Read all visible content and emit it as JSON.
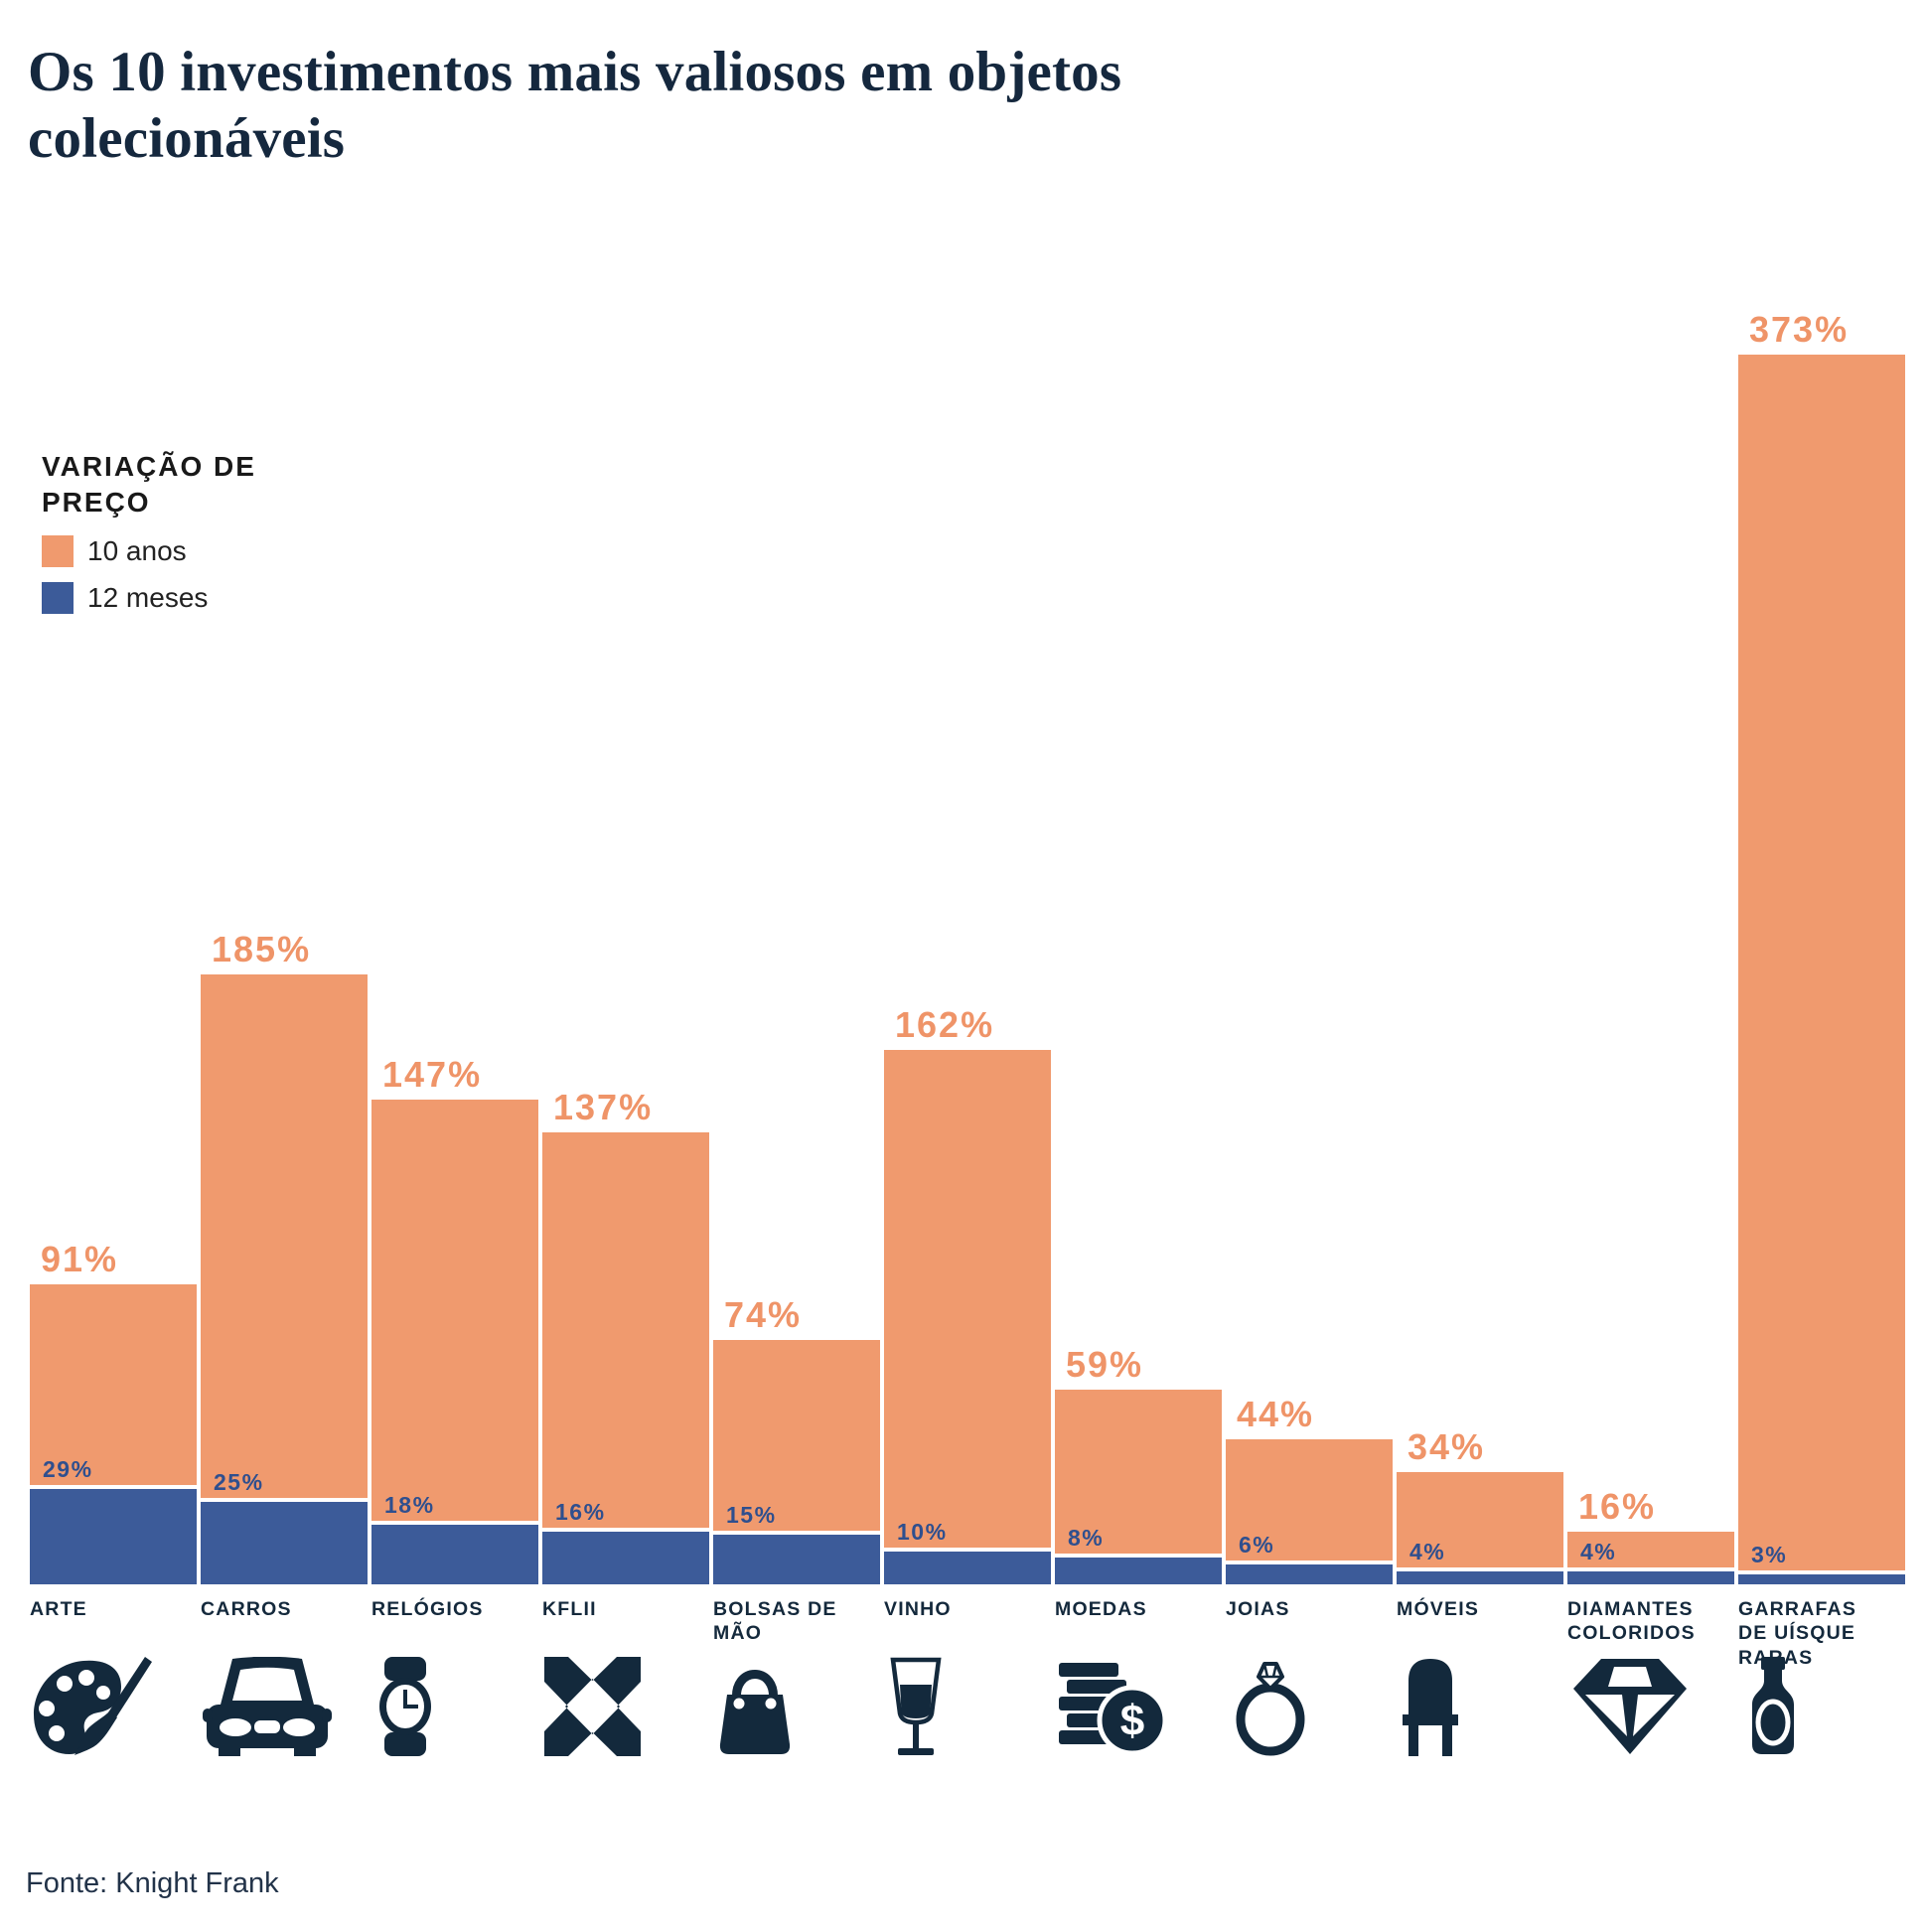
{
  "title": "Os 10 investimentos mais valiosos em objetos colecionáveis",
  "legend": {
    "title": "VARIAÇÃO DE PREÇO",
    "items": [
      {
        "label": "10 anos",
        "color": "#F09A6E"
      },
      {
        "label": "12 meses",
        "color": "#3C5B99"
      }
    ]
  },
  "source": "Fonte: Knight Frank",
  "colors": {
    "bar_10_anos": "#F09A6E",
    "bar_12_meses": "#3C5B99",
    "label_10_anos": "#EF9468",
    "label_12_meses": "#2F4F8E",
    "navy_ink": "#13293C",
    "title_text": "#15283E",
    "background": "#FFFFFF"
  },
  "chart_data": {
    "type": "bar",
    "title": "Os 10 investimentos mais valiosos em objetos colecionáveis",
    "categories": [
      "ARTE",
      "CARROS",
      "RELÓGIOS",
      "KFLII",
      "BOLSAS DE MÃO",
      "VINHO",
      "MOEDAS",
      "JOIAS",
      "MÓVEIS",
      "DIAMANTES COLORIDOS",
      "GARRAFAS DE UÍSQUE RARAS"
    ],
    "icons": [
      "palette-brush-icon",
      "car-icon",
      "wristwatch-icon",
      "kflii-logo-icon",
      "handbag-icon",
      "wine-glass-icon",
      "coins-dollar-icon",
      "diamond-ring-icon",
      "chair-icon",
      "diamond-icon",
      "whisky-bottle-icon"
    ],
    "series": [
      {
        "name": "10 anos",
        "values": [
          91,
          185,
          147,
          137,
          74,
          162,
          59,
          44,
          34,
          16,
          373
        ]
      },
      {
        "name": "12 meses",
        "values": [
          29,
          25,
          18,
          16,
          15,
          10,
          8,
          6,
          4,
          4,
          3
        ]
      }
    ],
    "unit": "%",
    "value_label_format": "{value}%",
    "xlabel": "",
    "ylabel": "",
    "ylim": [
      0,
      400
    ],
    "grid": false,
    "axes_visible": false,
    "legend_position": "upper-left"
  }
}
